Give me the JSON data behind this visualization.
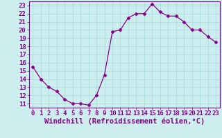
{
  "x": [
    0,
    1,
    2,
    3,
    4,
    5,
    6,
    7,
    8,
    9,
    10,
    11,
    12,
    13,
    14,
    15,
    16,
    17,
    18,
    19,
    20,
    21,
    22,
    23
  ],
  "y": [
    15.5,
    14.0,
    13.0,
    12.5,
    11.5,
    11.0,
    11.0,
    10.8,
    12.0,
    14.5,
    19.8,
    20.0,
    21.5,
    22.0,
    22.0,
    23.2,
    22.2,
    21.7,
    21.7,
    21.0,
    20.0,
    20.0,
    19.2,
    18.5
  ],
  "line_color": "#880088",
  "marker": "D",
  "marker_size": 2.5,
  "bg_color": "#cceeee",
  "grid_color": "#aadddd",
  "xlabel": "Windchill (Refroidissement éolien,°C)",
  "tick_fontsize": 6.5,
  "xlabel_fontsize": 7.5,
  "xlim": [
    -0.5,
    23.5
  ],
  "ylim": [
    10.5,
    23.5
  ],
  "yticks": [
    11,
    12,
    13,
    14,
    15,
    16,
    17,
    18,
    19,
    20,
    21,
    22,
    23
  ],
  "xticks": [
    0,
    1,
    2,
    3,
    4,
    5,
    6,
    7,
    8,
    9,
    10,
    11,
    12,
    13,
    14,
    15,
    16,
    17,
    18,
    19,
    20,
    21,
    22,
    23
  ]
}
